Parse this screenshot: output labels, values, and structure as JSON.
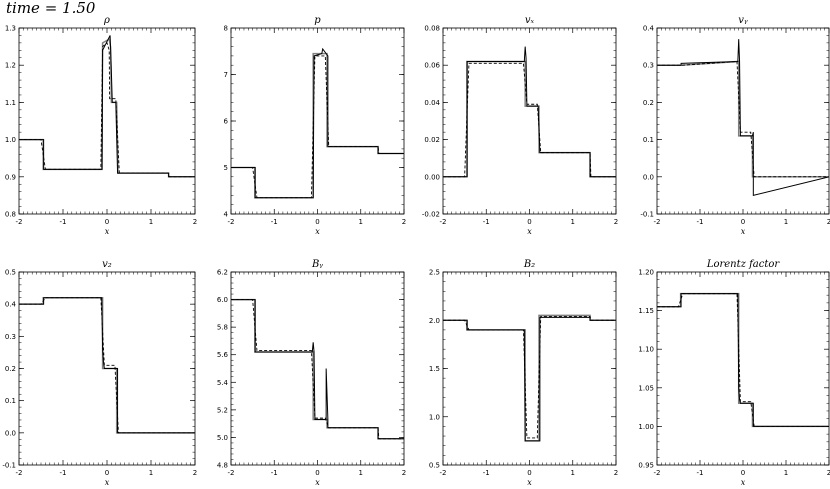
{
  "time_label": "time =   1.50",
  "chart_data": [
    {
      "type": "line",
      "title": "ρ",
      "xlabel": "x",
      "xlim": [
        -2,
        2
      ],
      "ylim": [
        0.8,
        1.3
      ],
      "xticks": [
        "-2",
        "-1",
        "0",
        "1",
        "2"
      ],
      "yticks": [
        "0.8",
        "0.9",
        "1.0",
        "1.1",
        "1.2",
        "1.3"
      ],
      "series": [
        {
          "x": [
            -2,
            -1.45,
            -1.45,
            -0.12,
            -0.1,
            0.05,
            0.08,
            0.1,
            0.22,
            0.25,
            1.4,
            1.4,
            2
          ],
          "y": [
            1.0,
            1.0,
            0.92,
            0.92,
            1.26,
            1.27,
            1.25,
            1.1,
            1.1,
            0.91,
            0.91,
            0.9,
            0.9
          ]
        },
        {
          "x": [
            -2,
            -1.5,
            -1.4,
            -0.14,
            -0.1,
            0.0,
            0.05,
            0.06,
            0.2,
            0.28,
            1.4,
            1.42,
            2
          ],
          "y": [
            1.0,
            1.0,
            0.92,
            0.92,
            1.25,
            1.26,
            1.24,
            1.11,
            1.11,
            0.91,
            0.91,
            0.9,
            0.9
          ]
        },
        {
          "x": [
            -2,
            -1.44,
            -1.44,
            -0.11,
            -0.1,
            0.07,
            0.09,
            0.12,
            0.2,
            0.24,
            1.4,
            1.4,
            2
          ],
          "y": [
            1.0,
            1.0,
            0.92,
            0.92,
            1.24,
            1.28,
            1.22,
            1.1,
            1.1,
            0.91,
            0.91,
            0.9,
            0.9
          ]
        }
      ]
    },
    {
      "type": "line",
      "title": "p",
      "xlabel": "x",
      "xlim": [
        -2,
        2
      ],
      "ylim": [
        4,
        8
      ],
      "xticks": [
        "-2",
        "-1",
        "0",
        "1",
        "2"
      ],
      "yticks": [
        "4",
        "5",
        "6",
        "7",
        "8"
      ],
      "series": [
        {
          "x": [
            -2,
            -1.45,
            -1.45,
            -0.1,
            -0.1,
            0.22,
            0.22,
            1.4,
            1.4,
            2
          ],
          "y": [
            5.0,
            5.0,
            4.35,
            4.35,
            7.45,
            7.45,
            5.45,
            5.45,
            5.3,
            5.3
          ]
        },
        {
          "x": [
            -2,
            -1.5,
            -1.4,
            -0.14,
            -0.06,
            0.18,
            0.26,
            1.4,
            1.42,
            2
          ],
          "y": [
            5.0,
            5.0,
            4.35,
            4.35,
            7.4,
            7.4,
            5.45,
            5.45,
            5.3,
            5.3
          ]
        },
        {
          "x": [
            -2,
            -1.44,
            -1.44,
            -0.1,
            -0.08,
            0.1,
            0.12,
            0.24,
            0.24,
            1.4,
            1.4,
            2
          ],
          "y": [
            5.0,
            5.0,
            4.35,
            4.35,
            7.4,
            7.45,
            7.55,
            7.4,
            5.45,
            5.45,
            5.3,
            5.3
          ]
        }
      ]
    },
    {
      "type": "line",
      "title": "vₓ",
      "xlabel": "x",
      "xlim": [
        -2,
        2
      ],
      "ylim": [
        -0.02,
        0.08
      ],
      "xticks": [
        "-2",
        "-1",
        "0",
        "1",
        "2"
      ],
      "yticks": [
        "-0.02",
        "0.00",
        "0.02",
        "0.04",
        "0.06",
        "0.08"
      ],
      "series": [
        {
          "x": [
            -2,
            -1.45,
            -1.45,
            -0.1,
            -0.1,
            0.22,
            0.22,
            1.4,
            1.4,
            2
          ],
          "y": [
            0.0,
            0.0,
            0.062,
            0.062,
            0.038,
            0.038,
            0.013,
            0.013,
            0.0,
            0.0
          ]
        },
        {
          "x": [
            -2,
            -1.5,
            -1.4,
            -0.14,
            -0.06,
            0.18,
            0.26,
            1.4,
            1.42,
            2
          ],
          "y": [
            0.0,
            0.0,
            0.061,
            0.061,
            0.039,
            0.039,
            0.013,
            0.013,
            0.0,
            0.0
          ]
        },
        {
          "x": [
            -2,
            -1.44,
            -1.44,
            -0.12,
            -0.1,
            -0.08,
            -0.06,
            0.2,
            0.24,
            1.4,
            1.4,
            2
          ],
          "y": [
            0.0,
            0.0,
            0.062,
            0.062,
            0.07,
            0.064,
            0.038,
            0.038,
            0.013,
            0.013,
            0.0,
            0.0
          ]
        }
      ]
    },
    {
      "type": "line",
      "title": "vᵧ",
      "xlabel": "x",
      "xlim": [
        -2,
        2
      ],
      "ylim": [
        -0.1,
        0.4
      ],
      "xticks": [
        "-2",
        "-1",
        "0",
        "1",
        "2"
      ],
      "yticks": [
        "-0.1",
        "0.0",
        "0.1",
        "0.2",
        "0.3",
        "0.4"
      ],
      "series": [
        {
          "x": [
            -2,
            -1.45,
            -1.45,
            -0.1,
            -0.1,
            0.22,
            0.22,
            2
          ],
          "y": [
            0.3,
            0.3,
            0.3,
            0.31,
            0.11,
            0.11,
            0.0,
            0.0
          ]
        },
        {
          "x": [
            -2,
            -1.5,
            -1.4,
            -0.14,
            -0.06,
            0.18,
            0.26,
            2
          ],
          "y": [
            0.3,
            0.3,
            0.3,
            0.31,
            0.12,
            0.12,
            0.0,
            0.0
          ]
        },
        {
          "x": [
            -2,
            -1.44,
            -1.44,
            -0.12,
            -0.1,
            -0.08,
            -0.06,
            0.22,
            0.24,
            0.24,
            2
          ],
          "y": [
            0.3,
            0.3,
            0.305,
            0.31,
            0.37,
            0.31,
            0.11,
            0.11,
            0.12,
            -0.05,
            0.0
          ]
        }
      ]
    },
    {
      "type": "line",
      "title": "v₂",
      "xlabel": "x",
      "xlim": [
        -2,
        2
      ],
      "ylim": [
        -0.1,
        0.5
      ],
      "xticks": [
        "-2",
        "-1",
        "0",
        "1",
        "2"
      ],
      "yticks": [
        "-0.1",
        "0.0",
        "0.1",
        "0.2",
        "0.3",
        "0.4",
        "0.5"
      ],
      "series": [
        {
          "x": [
            -2,
            -1.45,
            -1.45,
            -0.1,
            -0.1,
            0.22,
            0.22,
            2
          ],
          "y": [
            0.4,
            0.4,
            0.42,
            0.42,
            0.2,
            0.2,
            0.0,
            0.0
          ]
        },
        {
          "x": [
            -2,
            -1.5,
            -1.4,
            -0.14,
            -0.06,
            0.18,
            0.26,
            2
          ],
          "y": [
            0.4,
            0.4,
            0.42,
            0.42,
            0.21,
            0.21,
            0.0,
            0.0
          ]
        },
        {
          "x": [
            -2,
            -1.44,
            -1.44,
            -0.12,
            -0.1,
            -0.08,
            -0.06,
            0.24,
            0.24,
            2
          ],
          "y": [
            0.4,
            0.4,
            0.42,
            0.42,
            0.26,
            0.22,
            0.2,
            0.2,
            0.0,
            0.0
          ]
        }
      ]
    },
    {
      "type": "line",
      "title": "Bᵧ",
      "xlabel": "x",
      "xlim": [
        -2,
        2
      ],
      "ylim": [
        4.8,
        6.2
      ],
      "xticks": [
        "-2",
        "-1",
        "0",
        "1",
        "2"
      ],
      "yticks": [
        "4.8",
        "5.0",
        "5.2",
        "5.4",
        "5.6",
        "5.8",
        "6.0",
        "6.2"
      ],
      "series": [
        {
          "x": [
            -2,
            -1.45,
            -1.45,
            -0.1,
            -0.1,
            0.22,
            0.22,
            1.4,
            1.4,
            2
          ],
          "y": [
            6.0,
            6.0,
            5.62,
            5.62,
            5.13,
            5.13,
            5.07,
            5.07,
            4.99,
            4.99
          ]
        },
        {
          "x": [
            -2,
            -1.5,
            -1.4,
            -0.14,
            -0.06,
            0.18,
            0.26,
            1.4,
            1.42,
            2
          ],
          "y": [
            6.0,
            6.0,
            5.63,
            5.63,
            5.14,
            5.14,
            5.07,
            5.07,
            4.99,
            4.99
          ]
        },
        {
          "x": [
            -2,
            -1.44,
            -1.44,
            -0.12,
            -0.1,
            -0.08,
            -0.06,
            0.2,
            0.2,
            0.24,
            0.24,
            1.4,
            1.4,
            2
          ],
          "y": [
            6.0,
            6.0,
            5.62,
            5.62,
            5.69,
            5.62,
            5.13,
            5.13,
            5.5,
            5.13,
            5.07,
            5.07,
            4.99,
            4.99
          ]
        }
      ]
    },
    {
      "type": "line",
      "title": "B₂",
      "xlabel": "x",
      "xlim": [
        -2,
        2
      ],
      "ylim": [
        0.5,
        2.5
      ],
      "xticks": [
        "-2",
        "-1",
        "0",
        "1",
        "2"
      ],
      "yticks": [
        "0.5",
        "1.0",
        "1.5",
        "2.0",
        "2.5"
      ],
      "series": [
        {
          "x": [
            -2,
            -1.45,
            -1.45,
            -0.1,
            -0.1,
            0.22,
            0.22,
            1.4,
            1.4,
            2
          ],
          "y": [
            2.0,
            2.0,
            1.9,
            1.9,
            0.75,
            0.75,
            2.05,
            2.05,
            2.0,
            2.0
          ]
        },
        {
          "x": [
            -2,
            -1.5,
            -1.4,
            -0.14,
            -0.06,
            0.18,
            0.26,
            1.4,
            1.42,
            2
          ],
          "y": [
            2.0,
            2.0,
            1.9,
            1.9,
            0.78,
            0.78,
            2.04,
            2.04,
            2.0,
            2.0
          ]
        },
        {
          "x": [
            -2,
            -1.44,
            -1.44,
            -0.12,
            -0.1,
            0.24,
            0.24,
            1.4,
            1.4,
            2
          ],
          "y": [
            2.0,
            2.0,
            1.9,
            1.9,
            0.75,
            0.75,
            2.03,
            2.03,
            2.0,
            2.0
          ]
        }
      ]
    },
    {
      "type": "line",
      "title": "Lorentz factor",
      "xlabel": "x",
      "xlim": [
        -2,
        2
      ],
      "ylim": [
        0.95,
        1.2
      ],
      "xticks": [
        "-2",
        "-1",
        "0",
        "1",
        "2"
      ],
      "yticks": [
        "0.95",
        "1.00",
        "1.05",
        "1.10",
        "1.15",
        "1.20"
      ],
      "series": [
        {
          "x": [
            -2,
            -1.45,
            -1.45,
            -0.1,
            -0.1,
            0.22,
            0.22,
            2
          ],
          "y": [
            1.155,
            1.155,
            1.172,
            1.172,
            1.03,
            1.03,
            1.0,
            1.0
          ]
        },
        {
          "x": [
            -2,
            -1.5,
            -1.4,
            -0.14,
            -0.06,
            0.18,
            0.26,
            2
          ],
          "y": [
            1.155,
            1.155,
            1.172,
            1.172,
            1.032,
            1.032,
            1.0,
            1.0
          ]
        },
        {
          "x": [
            -2,
            -1.44,
            -1.44,
            -0.12,
            -0.1,
            -0.08,
            -0.06,
            0.24,
            0.24,
            2
          ],
          "y": [
            1.155,
            1.155,
            1.172,
            1.172,
            1.05,
            1.035,
            1.03,
            1.03,
            1.0,
            1.0
          ]
        }
      ]
    }
  ]
}
